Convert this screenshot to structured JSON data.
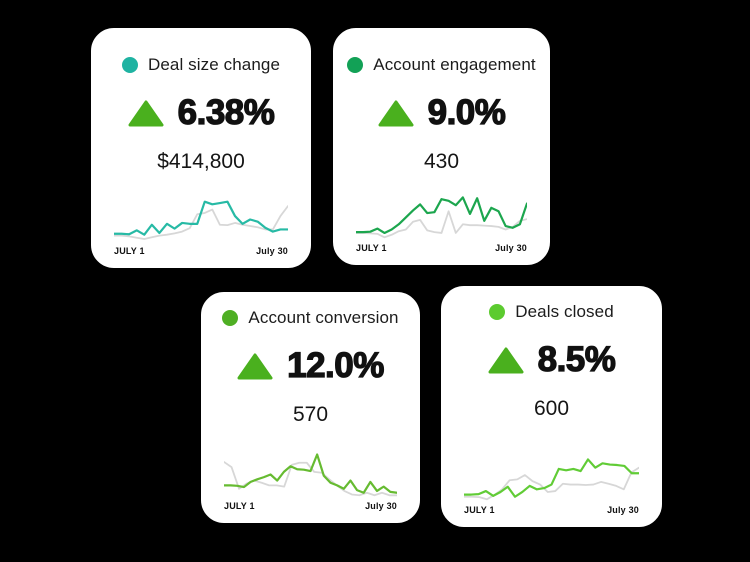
{
  "page": {
    "background": "#000000",
    "card_background": "#ffffff",
    "card_border": "#000000"
  },
  "chart_data": [
    {
      "type": "line",
      "title": "Deal size change",
      "trend": "up",
      "change_percent": "6.38%",
      "value": "$414,800",
      "x_start_label": "JULY 1",
      "x_end_label": "July 30",
      "accent_color": "#1FB3A2",
      "line_color": "#27BAA5",
      "arrow_color": "#4AB01E",
      "comparison_color": "#D7D7D7",
      "x_range": [
        "July 1",
        "July 30"
      ],
      "series": [
        {
          "name": "current",
          "values": [
            17,
            17,
            16,
            25,
            15,
            38,
            19,
            40,
            29,
            42,
            40,
            40,
            91,
            85,
            88,
            91,
            58,
            40,
            50,
            45,
            31,
            22,
            27,
            27
          ]
        },
        {
          "name": "previous",
          "values": [
            13,
            13,
            11,
            8,
            5,
            9,
            13,
            15,
            18,
            22,
            30,
            62,
            65,
            73,
            38,
            37,
            42,
            38,
            35,
            32,
            27,
            27,
            58,
            81
          ]
        }
      ]
    },
    {
      "type": "line",
      "title": "Account engagement",
      "trend": "up",
      "change_percent": "9.0%",
      "value": "430",
      "x_start_label": "JULY 1",
      "x_end_label": "July 30",
      "accent_color": "#12A156",
      "line_color": "#1CA64E",
      "arrow_color": "#4AB01E",
      "comparison_color": "#D7D7D7",
      "x_range": [
        "July 1",
        "July 30"
      ],
      "series": [
        {
          "name": "current",
          "values": [
            14,
            14,
            15,
            22,
            12,
            20,
            32,
            48,
            64,
            78,
            58,
            60,
            90,
            86,
            76,
            94,
            56,
            92,
            40,
            70,
            62,
            28,
            24,
            32,
            80
          ]
        },
        {
          "name": "previous",
          "values": [
            12,
            12,
            11,
            10,
            2,
            8,
            16,
            20,
            38,
            42,
            18,
            14,
            12,
            62,
            12,
            32,
            30,
            30,
            29,
            28,
            26,
            20,
            26,
            40,
            44
          ]
        }
      ]
    },
    {
      "type": "line",
      "title": "Account conversion",
      "trend": "up",
      "change_percent": "12.0%",
      "value": "570",
      "x_start_label": "JULY 1",
      "x_end_label": "July 30",
      "accent_color": "#4FAF24",
      "line_color": "#66BB31",
      "arrow_color": "#4AB01E",
      "comparison_color": "#D7D7D7",
      "x_range": [
        "July 1",
        "July 30"
      ],
      "series": [
        {
          "name": "current",
          "values": [
            25,
            25,
            24,
            21,
            33,
            39,
            44,
            50,
            36,
            56,
            69,
            62,
            61,
            58,
            96,
            47,
            31,
            25,
            17,
            36,
            14,
            8,
            33,
            12,
            22,
            10,
            8
          ]
        },
        {
          "name": "previous",
          "values": [
            79,
            67,
            17,
            29,
            36,
            31,
            25,
            25,
            22,
            72,
            77,
            77,
            56,
            54,
            39,
            25,
            12,
            4,
            2,
            8,
            2,
            8,
            2,
            2
          ]
        }
      ]
    },
    {
      "type": "line",
      "title": "Deals closed",
      "trend": "up",
      "change_percent": "8.5%",
      "value": "600",
      "x_start_label": "JULY 1",
      "x_end_label": "July 30",
      "accent_color": "#5CCB2F",
      "line_color": "#61CC36",
      "arrow_color": "#4AB01E",
      "comparison_color": "#D7D7D7",
      "x_range": [
        "July 1",
        "July 30"
      ],
      "series": [
        {
          "name": "current",
          "values": [
            13,
            13,
            14,
            21,
            10,
            19,
            31,
            8,
            19,
            33,
            25,
            28,
            36,
            72,
            69,
            72,
            67,
            94,
            75,
            85,
            82,
            81,
            79,
            62,
            62
          ]
        },
        {
          "name": "previous",
          "values": [
            8,
            8,
            7,
            2,
            12,
            25,
            46,
            48,
            58,
            44,
            36,
            19,
            21,
            38,
            36,
            36,
            35,
            36,
            42,
            38,
            33,
            25,
            64,
            75
          ]
        }
      ]
    }
  ]
}
